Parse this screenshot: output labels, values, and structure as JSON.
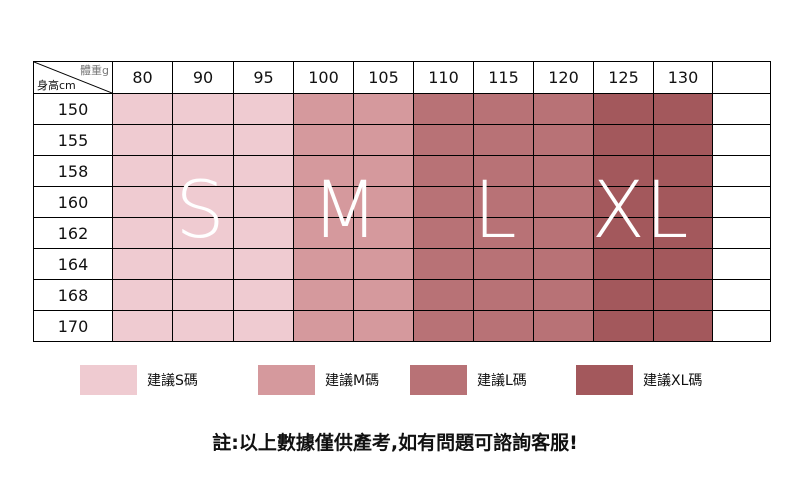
{
  "header": {
    "weight_label": "體重g",
    "height_label": "身高cm"
  },
  "weights": [
    "80",
    "90",
    "95",
    "100",
    "105",
    "110",
    "115",
    "120",
    "125",
    "130",
    ""
  ],
  "heights": [
    "150",
    "155",
    "158",
    "160",
    "162",
    "164",
    "168",
    "170"
  ],
  "sizes": [
    {
      "label": "S",
      "color": "#efcbd1",
      "columns": 3,
      "legend": "建議S碼"
    },
    {
      "label": "M",
      "color": "#d5999d",
      "columns": 2,
      "legend": "建議M碼"
    },
    {
      "label": "L",
      "color": "#b87276",
      "columns": 3,
      "legend": "建議L碼"
    },
    {
      "label": "XL",
      "color": "#a3585c",
      "columns": 2,
      "legend": "建議XL碼"
    }
  ],
  "note": "註:以上數據僅供產考,如有問題可諮詢客服!"
}
